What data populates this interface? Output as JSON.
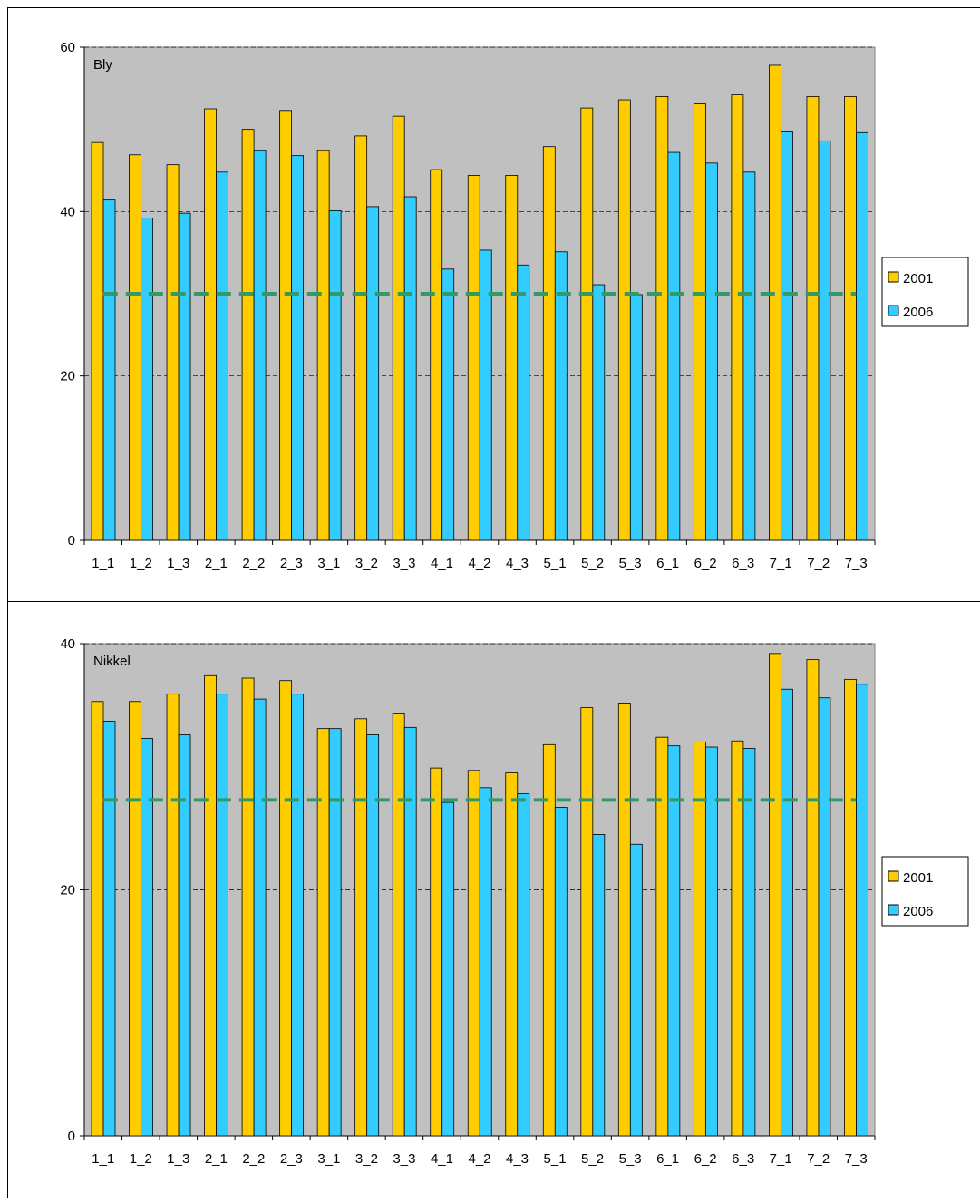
{
  "chart_data": [
    {
      "type": "bar",
      "title": "Bly",
      "categories": [
        "1_1",
        "1_2",
        "1_3",
        "2_1",
        "2_2",
        "2_3",
        "3_1",
        "3_2",
        "3_3",
        "4_1",
        "4_2",
        "4_3",
        "5_1",
        "5_2",
        "5_3",
        "6_1",
        "6_2",
        "6_3",
        "7_1",
        "7_2",
        "7_3"
      ],
      "series": [
        {
          "name": "2001",
          "color": "#ffcc00",
          "values": [
            48.4,
            46.9,
            45.7,
            52.5,
            50.0,
            52.3,
            47.4,
            49.2,
            51.6,
            45.1,
            44.4,
            44.4,
            47.9,
            52.6,
            53.6,
            54.0,
            53.1,
            54.2,
            57.8,
            54.0,
            54.0
          ]
        },
        {
          "name": "2006",
          "color": "#33ccff",
          "values": [
            41.4,
            39.2,
            39.8,
            44.8,
            47.4,
            46.8,
            40.1,
            40.6,
            41.8,
            33.0,
            35.3,
            33.5,
            35.1,
            31.1,
            29.9,
            47.2,
            45.9,
            44.8,
            49.7,
            48.6,
            49.6
          ]
        }
      ],
      "ylim": [
        0,
        60
      ],
      "yticks": [
        0,
        20,
        40,
        60
      ],
      "grid": true,
      "legend": "right",
      "reference_line": 30,
      "reference_color": "#339966"
    },
    {
      "type": "bar",
      "title": "Nikkel",
      "categories": [
        "1_1",
        "1_2",
        "1_3",
        "2_1",
        "2_2",
        "2_3",
        "3_1",
        "3_2",
        "3_3",
        "4_1",
        "4_2",
        "4_3",
        "5_1",
        "5_2",
        "5_3",
        "6_1",
        "6_2",
        "6_3",
        "7_1",
        "7_2",
        "7_3"
      ],
      "series": [
        {
          "name": "2001",
          "color": "#ffcc00",
          "values": [
            35.3,
            35.3,
            35.9,
            37.4,
            37.2,
            37.0,
            33.1,
            33.9,
            34.3,
            29.9,
            29.7,
            29.5,
            31.8,
            34.8,
            35.1,
            32.4,
            32.0,
            32.1,
            39.2,
            38.7,
            37.1
          ]
        },
        {
          "name": "2006",
          "color": "#33ccff",
          "values": [
            33.7,
            32.3,
            32.6,
            35.9,
            35.5,
            35.9,
            33.1,
            32.6,
            33.2,
            27.1,
            28.3,
            27.8,
            26.7,
            24.5,
            23.7,
            31.7,
            31.6,
            31.5,
            36.3,
            35.6,
            36.7
          ]
        }
      ],
      "ylim": [
        0,
        40
      ],
      "yticks": [
        0,
        20,
        40
      ],
      "grid": true,
      "legend": "right",
      "reference_line": 27.3,
      "reference_color": "#339966"
    }
  ]
}
